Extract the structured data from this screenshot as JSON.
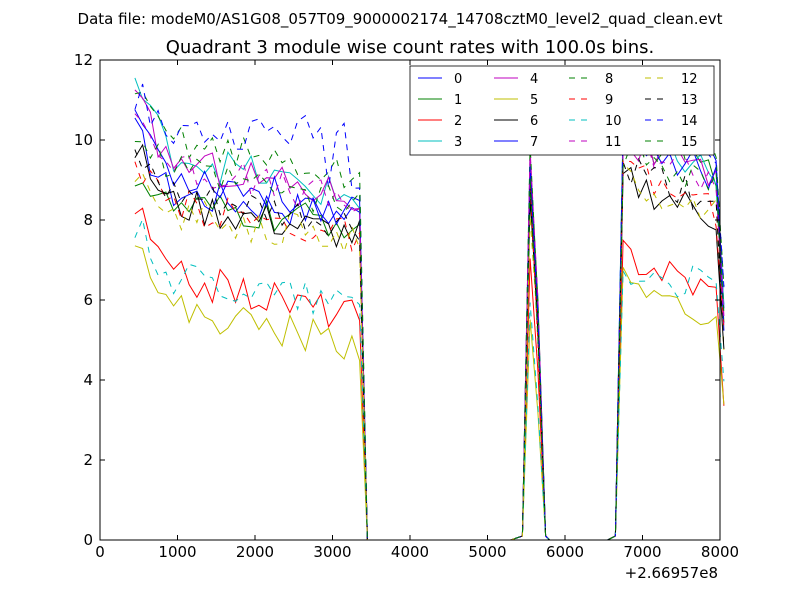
{
  "figure": {
    "suptitle": "Data file: modeM0/AS1G08_057T09_9000002174_14708cztM0_level2_quad_clean.evt"
  },
  "chart_data": {
    "type": "line",
    "title": "Quadrant 3 module wise count rates with 100.0s bins.",
    "xlabel": "",
    "ylabel": "",
    "x_offset_label": "+2.66957e8",
    "xlim": [
      0,
      8000
    ],
    "ylim": [
      0,
      12
    ],
    "xticks": [
      0,
      1000,
      2000,
      3000,
      4000,
      5000,
      6000,
      7000,
      8000
    ],
    "yticks": [
      0,
      2,
      4,
      6,
      8,
      10,
      12
    ],
    "grid": false,
    "legend": {
      "position": "top-right",
      "columns": 4
    },
    "series": [
      {
        "name": "0",
        "color": "#0000ff",
        "dash": "solid"
      },
      {
        "name": "1",
        "color": "#008000",
        "dash": "solid"
      },
      {
        "name": "2",
        "color": "#ff0000",
        "dash": "solid"
      },
      {
        "name": "3",
        "color": "#00bfbf",
        "dash": "solid"
      },
      {
        "name": "4",
        "color": "#bf00bf",
        "dash": "solid"
      },
      {
        "name": "5",
        "color": "#bfbf00",
        "dash": "solid"
      },
      {
        "name": "6",
        "color": "#000000",
        "dash": "solid"
      },
      {
        "name": "7",
        "color": "#0000ff",
        "dash": "solid"
      },
      {
        "name": "8",
        "color": "#008000",
        "dash": "dashed"
      },
      {
        "name": "9",
        "color": "#ff0000",
        "dash": "dashed"
      },
      {
        "name": "10",
        "color": "#00bfbf",
        "dash": "dashed"
      },
      {
        "name": "11",
        "color": "#bf00bf",
        "dash": "dashed"
      },
      {
        "name": "12",
        "color": "#bfbf00",
        "dash": "dashed"
      },
      {
        "name": "13",
        "color": "#000000",
        "dash": "dashed"
      },
      {
        "name": "14",
        "color": "#0000ff",
        "dash": "dashed"
      },
      {
        "name": "15",
        "color": "#008000",
        "dash": "dashed"
      }
    ],
    "segments": {
      "seg1": [
        450,
        3350
      ],
      "seg2": [
        5450,
        5750
      ],
      "seg3": [
        6650,
        8000
      ]
    },
    "series_levels": {
      "0": [
        10.2,
        8.7,
        8.6,
        8.1,
        10.4,
        9.5
      ],
      "1": [
        9.2,
        8.3,
        8.0,
        7.9,
        10.1,
        9.2
      ],
      "2": [
        8.3,
        6.6,
        6.0,
        5.6,
        7.2,
        6.1
      ],
      "3": [
        11.5,
        9.7,
        9.0,
        8.5,
        10.4,
        9.0
      ],
      "4": [
        11.0,
        9.5,
        8.8,
        8.6,
        10.0,
        8.8
      ],
      "5": [
        7.8,
        5.8,
        5.2,
        4.9,
        6.4,
        5.5
      ],
      "6": [
        9.8,
        8.4,
        7.8,
        7.6,
        9.0,
        8.0
      ],
      "7": [
        10.8,
        9.2,
        8.6,
        8.2,
        10.2,
        9.0
      ],
      "8": [
        11.0,
        10.1,
        9.4,
        9.0,
        10.5,
        9.6
      ],
      "9": [
        9.1,
        8.4,
        7.9,
        7.6,
        9.2,
        8.2
      ],
      "10": [
        7.9,
        6.6,
        6.3,
        5.9,
        6.7,
        6.3
      ],
      "11": [
        10.8,
        9.4,
        8.7,
        8.4,
        10.1,
        8.9
      ],
      "12": [
        8.9,
        8.2,
        7.8,
        7.5,
        9.0,
        8.1
      ],
      "13": [
        9.5,
        8.6,
        8.0,
        7.8,
        9.3,
        8.4
      ],
      "14": [
        11.2,
        10.2,
        9.6,
        10.2,
        10.4,
        9.7
      ],
      "15": [
        10.2,
        9.2,
        8.6,
        8.3,
        9.7,
        8.9
      ]
    }
  }
}
